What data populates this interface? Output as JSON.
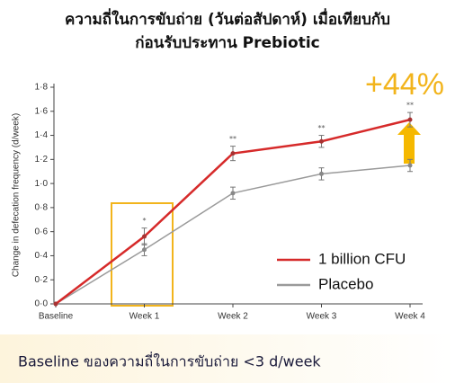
{
  "chart_data": {
    "type": "line",
    "title": "ความถี่ในการขับถ่าย (วันต่อสัปดาห์) เมื่อเทียบกับ",
    "subtitle": "ก่อนรับประทาน Prebiotic",
    "ylabel": "Change in defecation frequency (d/week)",
    "categories": [
      "Baseline",
      "Week 1",
      "Week 2",
      "Week 3",
      "Week 4"
    ],
    "series": [
      {
        "name": "1 billion CFU",
        "color": "#d62a2a",
        "values": [
          0,
          0.56,
          1.25,
          1.35,
          1.53
        ],
        "errors": [
          0,
          0.07,
          0.06,
          0.05,
          0.06
        ],
        "significance": [
          null,
          "*",
          "**",
          "**",
          "**"
        ]
      },
      {
        "name": "Placebo",
        "color": "#9a9a9a",
        "values": [
          0,
          0.45,
          0.92,
          1.08,
          1.15
        ],
        "errors": [
          0,
          0.05,
          0.05,
          0.05,
          0.05
        ]
      }
    ],
    "ylim": [
      0,
      1.8
    ],
    "yticks": [
      {
        "value": 0,
        "label": "0·0"
      },
      {
        "value": 0.2,
        "label": "0·2"
      },
      {
        "value": 0.4,
        "label": "0·4"
      },
      {
        "value": 0.6,
        "label": "0·6"
      },
      {
        "value": 0.8,
        "label": "0·8"
      },
      {
        "value": 1.0,
        "label": "1·0"
      },
      {
        "value": 1.2,
        "label": "1·2"
      },
      {
        "value": 1.4,
        "label": "1·4"
      },
      {
        "value": 1.6,
        "label": "1·6"
      },
      {
        "value": 1.8,
        "label": "1·8"
      }
    ],
    "annotation": "+44%",
    "footnote": "Baseline ของความถี่ในการขับถ่าย <3 d/week"
  }
}
